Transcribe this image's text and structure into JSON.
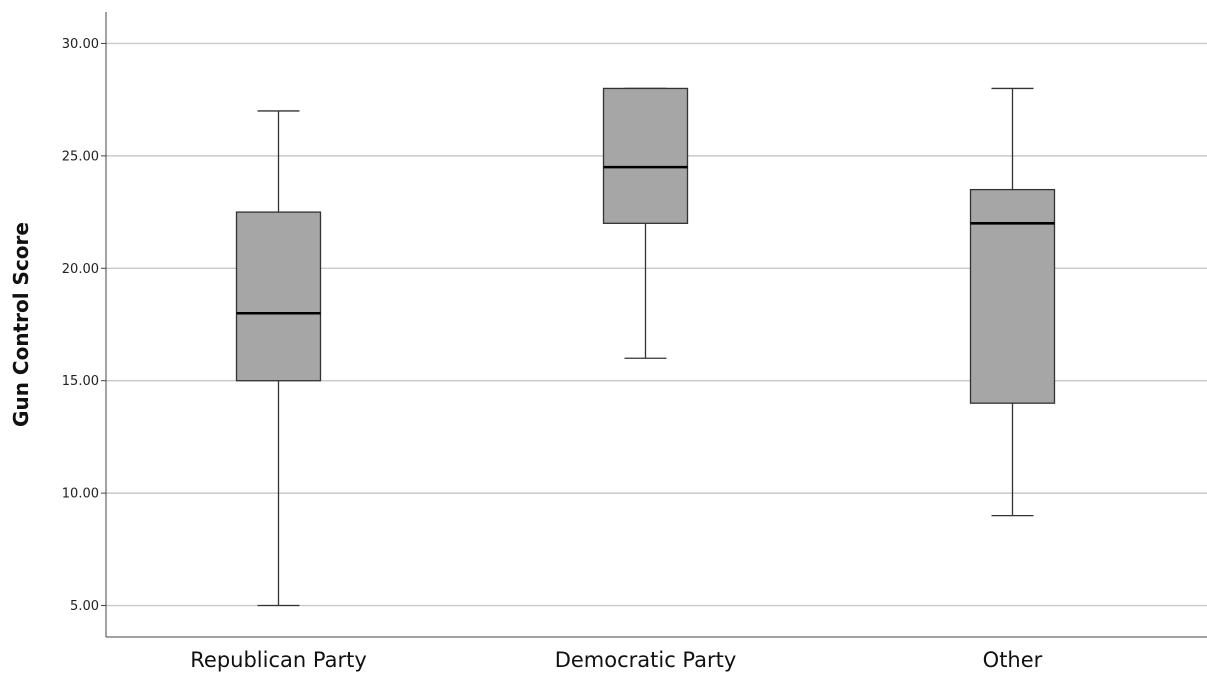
{
  "chart_data": {
    "type": "box",
    "title": "",
    "xlabel": "",
    "ylabel": "Gun Control Score",
    "ylim": [
      3.6,
      31.4
    ],
    "yticks": [
      5,
      10,
      15,
      20,
      25,
      30
    ],
    "ytick_labels": [
      "5.00",
      "10.00",
      "15.00",
      "20.00",
      "25.00",
      "30.00"
    ],
    "grid": true,
    "legend": "none",
    "box_fill": "#a6a6a6",
    "categories": [
      "Republican Party",
      "Democratic Party",
      "Other"
    ],
    "boxes": [
      {
        "min": 5,
        "q1": 15,
        "median": 18,
        "q3": 22.5,
        "max": 27
      },
      {
        "min": 16,
        "q1": 22,
        "median": 24.5,
        "q3": 28,
        "max": 28
      },
      {
        "min": 9,
        "q1": 14,
        "median": 22,
        "q3": 23.5,
        "max": 28
      }
    ]
  }
}
